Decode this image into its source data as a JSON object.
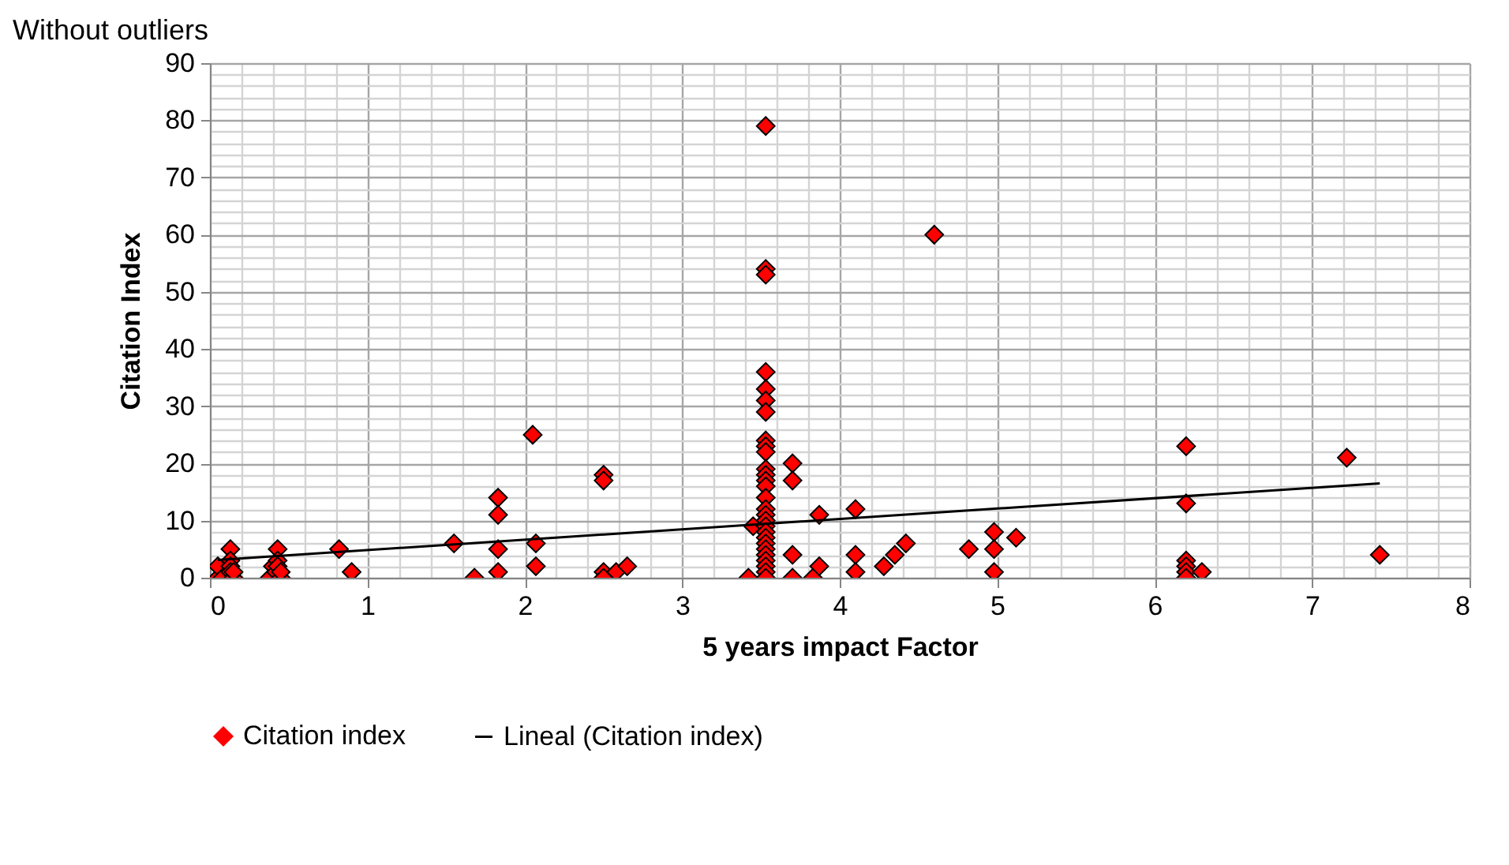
{
  "chart_data": {
    "type": "scatter",
    "title": "Without outliers",
    "xlabel": "5 years impact Factor",
    "ylabel": "Citation Index",
    "xlim": [
      0,
      8
    ],
    "ylim": [
      0,
      90
    ],
    "xticks": [
      0,
      {
        "value": 0.2,
        "label": null
      },
      {
        "value": 0.4,
        "label": null
      },
      {
        "value": 0.6,
        "label": null
      },
      {
        "value": 0.8,
        "label": null
      },
      1,
      {
        "value": 1.2,
        "label": null
      },
      {
        "value": 1.4,
        "label": null
      },
      {
        "value": 1.6,
        "label": null
      },
      {
        "value": 1.8,
        "label": null
      },
      2,
      {
        "value": 2.2,
        "label": null
      },
      {
        "value": 2.4,
        "label": null
      },
      {
        "value": 2.6,
        "label": null
      },
      {
        "value": 2.8,
        "label": null
      },
      3,
      {
        "value": 3.2,
        "label": null
      },
      {
        "value": 3.4,
        "label": null
      },
      {
        "value": 3.6,
        "label": null
      },
      {
        "value": 3.8,
        "label": null
      },
      4,
      {
        "value": 4.2,
        "label": null
      },
      {
        "value": 4.4,
        "label": null
      },
      {
        "value": 4.6,
        "label": null
      },
      {
        "value": 4.8,
        "label": null
      },
      5,
      {
        "value": 5.2,
        "label": null
      },
      {
        "value": 5.4,
        "label": null
      },
      {
        "value": 5.6,
        "label": null
      },
      {
        "value": 5.8,
        "label": null
      },
      6,
      {
        "value": 6.2,
        "label": null
      },
      {
        "value": 6.4,
        "label": null
      },
      {
        "value": 6.6,
        "label": null
      },
      {
        "value": 6.8,
        "label": null
      },
      7,
      {
        "value": 7.2,
        "label": null
      },
      {
        "value": 7.4,
        "label": null
      },
      {
        "value": 7.6,
        "label": null
      },
      {
        "value": 7.8,
        "label": null
      },
      8
    ],
    "yticks": [
      0,
      {
        "value": 2,
        "label": null
      },
      {
        "value": 4,
        "label": null
      },
      {
        "value": 6,
        "label": null
      },
      {
        "value": 8,
        "label": null
      },
      10,
      {
        "value": 12,
        "label": null
      },
      {
        "value": 14,
        "label": null
      },
      {
        "value": 16,
        "label": null
      },
      {
        "value": 18,
        "label": null
      },
      20,
      {
        "value": 22,
        "label": null
      },
      {
        "value": 24,
        "label": null
      },
      {
        "value": 26,
        "label": null
      },
      {
        "value": 28,
        "label": null
      },
      30,
      {
        "value": 32,
        "label": null
      },
      {
        "value": 34,
        "label": null
      },
      {
        "value": 36,
        "label": null
      },
      {
        "value": 38,
        "label": null
      },
      40,
      {
        "value": 42,
        "label": null
      },
      {
        "value": 44,
        "label": null
      },
      {
        "value": 46,
        "label": null
      },
      {
        "value": 48,
        "label": null
      },
      50,
      {
        "value": 52,
        "label": null
      },
      {
        "value": 54,
        "label": null
      },
      {
        "value": 56,
        "label": null
      },
      {
        "value": 58,
        "label": null
      },
      60,
      {
        "value": 62,
        "label": null
      },
      {
        "value": 64,
        "label": null
      },
      {
        "value": 66,
        "label": null
      },
      {
        "value": 68,
        "label": null
      },
      70,
      {
        "value": 72,
        "label": null
      },
      {
        "value": 74,
        "label": null
      },
      {
        "value": 76,
        "label": null
      },
      {
        "value": 78,
        "label": null
      },
      80,
      {
        "value": 82,
        "label": null
      },
      {
        "value": 84,
        "label": null
      },
      {
        "value": 86,
        "label": null
      },
      {
        "value": 88,
        "label": null
      },
      90
    ],
    "grid": true,
    "legend": "bottom",
    "series": [
      {
        "name": "Citation index",
        "marker": "diamond",
        "color": "#ff0000",
        "x": [
          0.05,
          0.05,
          0.08,
          0.13,
          0.13,
          0.13,
          0.13,
          0.15,
          0.15,
          0.38,
          0.4,
          0.42,
          0.43,
          0.43,
          0.43,
          0.45,
          0.45,
          0.82,
          0.9,
          1.55,
          1.68,
          1.83,
          1.83,
          1.83,
          1.83,
          2.05,
          2.07,
          2.07,
          2.5,
          2.5,
          2.5,
          2.5,
          2.58,
          2.65,
          3.42,
          3.45,
          3.53,
          3.53,
          3.53,
          3.53,
          3.53,
          3.53,
          3.53,
          3.53,
          3.53,
          3.53,
          3.53,
          3.53,
          3.53,
          3.53,
          3.53,
          3.53,
          3.53,
          3.53,
          3.53,
          3.53,
          3.53,
          3.53,
          3.53,
          3.53,
          3.53,
          3.53,
          3.53,
          3.53,
          3.7,
          3.7,
          3.7,
          3.7,
          3.83,
          3.87,
          3.87,
          4.1,
          4.1,
          4.1,
          4.28,
          4.35,
          4.42,
          4.6,
          4.82,
          4.98,
          4.98,
          4.98,
          5.12,
          6.2,
          6.2,
          6.2,
          6.2,
          6.2,
          6.2,
          6.3,
          7.22,
          7.43
        ],
        "values": [
          0,
          2,
          0,
          5,
          3,
          2,
          1,
          0,
          1,
          0,
          2,
          1,
          5,
          3,
          2,
          0,
          1,
          5,
          1,
          6,
          0,
          14,
          11,
          5,
          1,
          25,
          6,
          2,
          18,
          17,
          1,
          0,
          1,
          2,
          0,
          9,
          79,
          54,
          53,
          36,
          33,
          31,
          29,
          24,
          23,
          22,
          19,
          18,
          17,
          16,
          14,
          12,
          11,
          10,
          9,
          8,
          7,
          6,
          5,
          4,
          3,
          2,
          1,
          0,
          20,
          17,
          4,
          0,
          0,
          2,
          11,
          12,
          4,
          1,
          2,
          4,
          6,
          60,
          5,
          8,
          5,
          1,
          7,
          23,
          13,
          3,
          2,
          1,
          0,
          1,
          21,
          4
        ]
      },
      {
        "name": "Lineal (Citation index)",
        "type": "line",
        "color": "#000000",
        "line_style": "solid",
        "x": [
          0.05,
          7.43
        ],
        "values": [
          3.1,
          16.5
        ]
      }
    ]
  }
}
